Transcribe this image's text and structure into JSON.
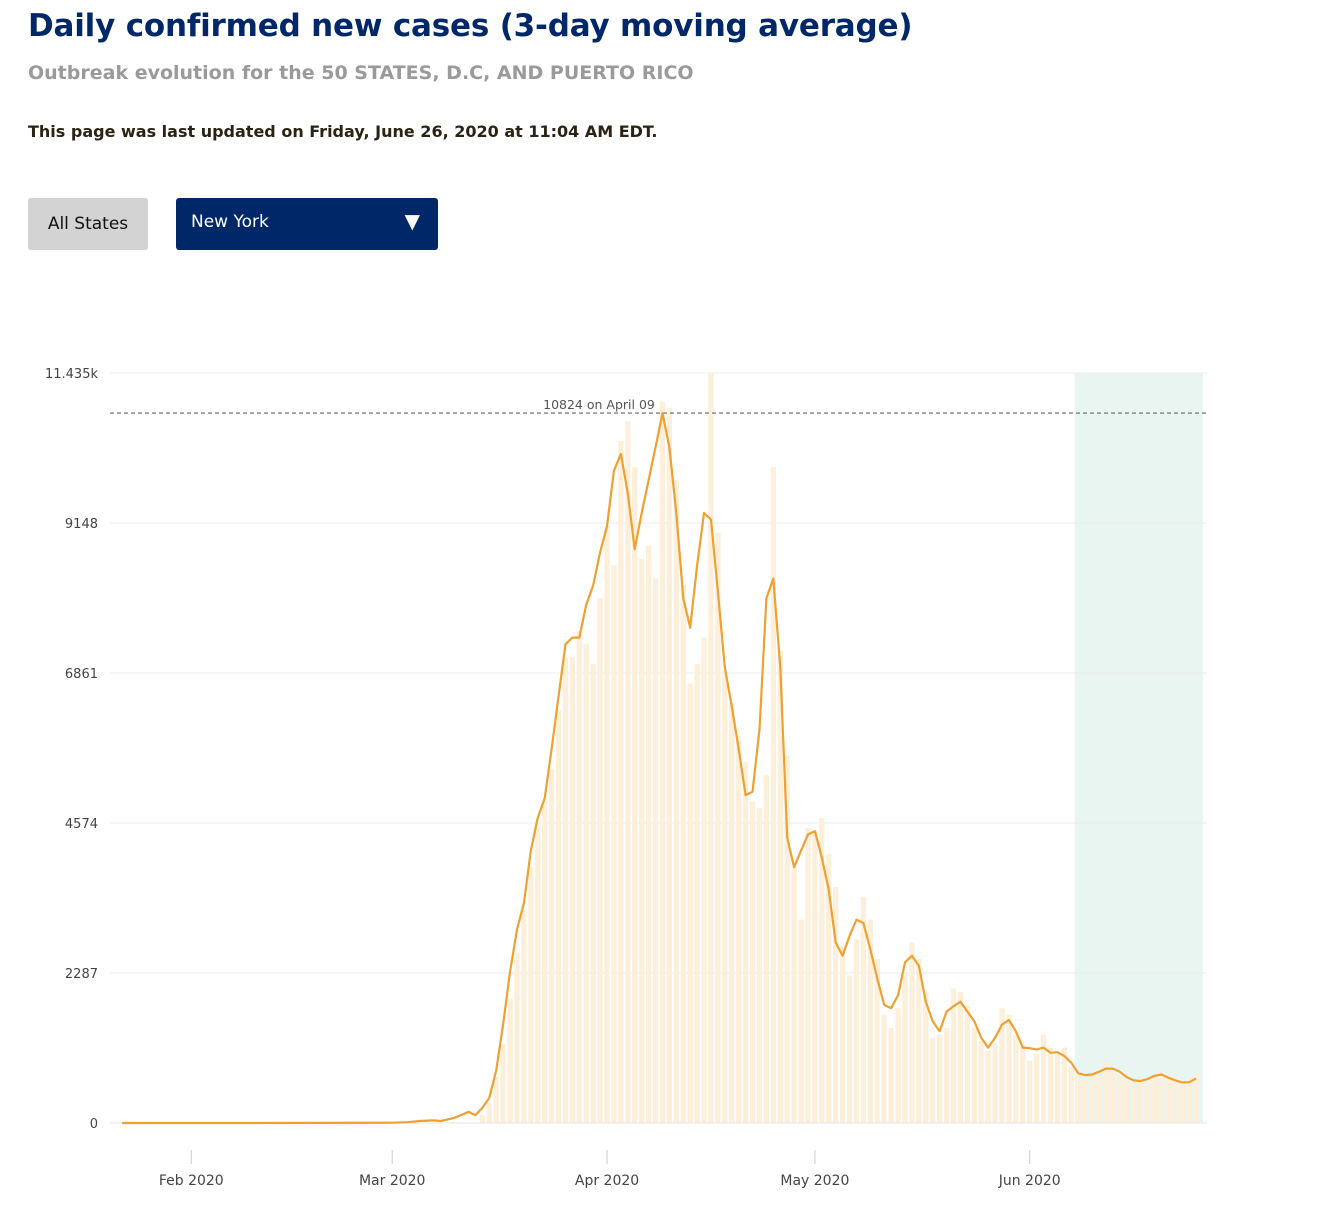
{
  "header": {
    "title": "Daily confirmed new cases (3-day moving average)",
    "subtitle": "Outbreak evolution for the 50 STATES, D.C, AND PUERTO RICO",
    "updated": "This page was last updated on Friday, June 26, 2020 at 11:04 AM EDT."
  },
  "controls": {
    "all_states_label": "All States",
    "state_selected": "New York",
    "caret_icon": "triangle-down-icon"
  },
  "colors": {
    "title": "#002868",
    "line": "#f0a030",
    "bars": "#fdefd9",
    "highlight": "#e9f5f1"
  },
  "chart_data": {
    "type": "line",
    "ylim": [
      0,
      11435
    ],
    "y_ticks": [
      {
        "value": 0,
        "label": "0"
      },
      {
        "value": 2287,
        "label": "2287"
      },
      {
        "value": 4574,
        "label": "4574"
      },
      {
        "value": 6861,
        "label": "6861"
      },
      {
        "value": 9148,
        "label": "9148"
      },
      {
        "value": 11435,
        "label": "11.435k"
      }
    ],
    "x_range": [
      "2020-01-22",
      "2020-06-25"
    ],
    "x_ticks": [
      {
        "date": "2020-02-01",
        "label": "Feb 2020"
      },
      {
        "date": "2020-03-01",
        "label": "Mar 2020"
      },
      {
        "date": "2020-04-01",
        "label": "Apr 2020"
      },
      {
        "date": "2020-05-01",
        "label": "May 2020"
      },
      {
        "date": "2020-06-01",
        "label": "Jun 2020"
      }
    ],
    "peak_annotation": {
      "value": 10824,
      "label": "10824 on April 09"
    },
    "highlight_range": [
      "2020-06-08",
      "2020-06-25"
    ],
    "series": [
      {
        "kind": "line",
        "points": [
          [
            "2020-01-22",
            0
          ],
          [
            "2020-02-10",
            0
          ],
          [
            "2020-03-01",
            5
          ],
          [
            "2020-03-03",
            10
          ],
          [
            "2020-03-05",
            30
          ],
          [
            "2020-03-07",
            40
          ],
          [
            "2020-03-08",
            30
          ],
          [
            "2020-03-10",
            80
          ],
          [
            "2020-03-12",
            170
          ],
          [
            "2020-03-13",
            120
          ],
          [
            "2020-03-14",
            230
          ],
          [
            "2020-03-15",
            380
          ],
          [
            "2020-03-16",
            800
          ],
          [
            "2020-03-17",
            1500
          ],
          [
            "2020-03-18",
            2300
          ],
          [
            "2020-03-19",
            2950
          ],
          [
            "2020-03-20",
            3350
          ],
          [
            "2020-03-21",
            4150
          ],
          [
            "2020-03-22",
            4650
          ],
          [
            "2020-03-23",
            4950
          ],
          [
            "2020-03-24",
            5700
          ],
          [
            "2020-03-25",
            6500
          ],
          [
            "2020-03-26",
            7300
          ],
          [
            "2020-03-27",
            7400
          ],
          [
            "2020-03-28",
            7400
          ],
          [
            "2020-03-29",
            7900
          ],
          [
            "2020-03-30",
            8200
          ],
          [
            "2020-03-31",
            8700
          ],
          [
            "2020-04-01",
            9100
          ],
          [
            "2020-04-02",
            9950
          ],
          [
            "2020-04-03",
            10200
          ],
          [
            "2020-04-04",
            9600
          ],
          [
            "2020-04-05",
            8750
          ],
          [
            "2020-04-06",
            9300
          ],
          [
            "2020-04-07",
            9800
          ],
          [
            "2020-04-08",
            10300
          ],
          [
            "2020-04-09",
            10824
          ],
          [
            "2020-04-10",
            10300
          ],
          [
            "2020-04-11",
            9300
          ],
          [
            "2020-04-12",
            8000
          ],
          [
            "2020-04-13",
            7550
          ],
          [
            "2020-04-14",
            8500
          ],
          [
            "2020-04-15",
            9300
          ],
          [
            "2020-04-16",
            9200
          ],
          [
            "2020-04-17",
            8100
          ],
          [
            "2020-04-18",
            6950
          ],
          [
            "2020-04-19",
            6350
          ],
          [
            "2020-04-20",
            5700
          ],
          [
            "2020-04-21",
            5000
          ],
          [
            "2020-04-22",
            5050
          ],
          [
            "2020-04-23",
            6000
          ],
          [
            "2020-04-24",
            8000
          ],
          [
            "2020-04-25",
            8300
          ],
          [
            "2020-04-26",
            6950
          ],
          [
            "2020-04-27",
            4350
          ],
          [
            "2020-04-28",
            3900
          ],
          [
            "2020-04-29",
            4150
          ],
          [
            "2020-04-30",
            4400
          ],
          [
            "2020-05-01",
            4450
          ],
          [
            "2020-05-02",
            4050
          ],
          [
            "2020-05-03",
            3550
          ],
          [
            "2020-05-04",
            2750
          ],
          [
            "2020-05-05",
            2550
          ],
          [
            "2020-05-06",
            2850
          ],
          [
            "2020-05-07",
            3100
          ],
          [
            "2020-05-08",
            3050
          ],
          [
            "2020-05-09",
            2650
          ],
          [
            "2020-05-10",
            2200
          ],
          [
            "2020-05-11",
            1800
          ],
          [
            "2020-05-12",
            1750
          ],
          [
            "2020-05-13",
            1950
          ],
          [
            "2020-05-14",
            2450
          ],
          [
            "2020-05-15",
            2550
          ],
          [
            "2020-05-16",
            2400
          ],
          [
            "2020-05-17",
            1850
          ],
          [
            "2020-05-18",
            1550
          ],
          [
            "2020-05-19",
            1400
          ],
          [
            "2020-05-20",
            1700
          ],
          [
            "2020-05-21",
            1780
          ],
          [
            "2020-05-22",
            1850
          ],
          [
            "2020-05-23",
            1700
          ],
          [
            "2020-05-24",
            1550
          ],
          [
            "2020-05-25",
            1300
          ],
          [
            "2020-05-26",
            1150
          ],
          [
            "2020-05-27",
            1300
          ],
          [
            "2020-05-28",
            1500
          ],
          [
            "2020-05-29",
            1570
          ],
          [
            "2020-05-30",
            1400
          ],
          [
            "2020-05-31",
            1150
          ],
          [
            "2020-06-01",
            1140
          ],
          [
            "2020-06-02",
            1120
          ],
          [
            "2020-06-03",
            1150
          ],
          [
            "2020-06-04",
            1070
          ],
          [
            "2020-06-05",
            1080
          ],
          [
            "2020-06-06",
            1020
          ],
          [
            "2020-06-07",
            920
          ],
          [
            "2020-06-08",
            760
          ],
          [
            "2020-06-09",
            730
          ],
          [
            "2020-06-10",
            740
          ],
          [
            "2020-06-11",
            780
          ],
          [
            "2020-06-12",
            830
          ],
          [
            "2020-06-13",
            830
          ],
          [
            "2020-06-14",
            780
          ],
          [
            "2020-06-15",
            700
          ],
          [
            "2020-06-16",
            650
          ],
          [
            "2020-06-17",
            640
          ],
          [
            "2020-06-18",
            670
          ],
          [
            "2020-06-19",
            720
          ],
          [
            "2020-06-20",
            740
          ],
          [
            "2020-06-21",
            690
          ],
          [
            "2020-06-22",
            650
          ],
          [
            "2020-06-23",
            620
          ],
          [
            "2020-06-24",
            620
          ],
          [
            "2020-06-25",
            680
          ]
        ]
      },
      {
        "kind": "bar",
        "points": [
          [
            "2020-03-14",
            120
          ],
          [
            "2020-03-15",
            300
          ],
          [
            "2020-03-16",
            700
          ],
          [
            "2020-03-17",
            1200
          ],
          [
            "2020-03-18",
            1900
          ],
          [
            "2020-03-19",
            2600
          ],
          [
            "2020-03-20",
            3250
          ],
          [
            "2020-03-21",
            3900
          ],
          [
            "2020-03-22",
            4500
          ],
          [
            "2020-03-23",
            4900
          ],
          [
            "2020-03-24",
            5400
          ],
          [
            "2020-03-25",
            6300
          ],
          [
            "2020-03-26",
            7100
          ],
          [
            "2020-03-27",
            7100
          ],
          [
            "2020-03-28",
            7500
          ],
          [
            "2020-03-29",
            7300
          ],
          [
            "2020-03-30",
            7000
          ],
          [
            "2020-03-31",
            8000
          ],
          [
            "2020-04-01",
            9100
          ],
          [
            "2020-04-02",
            8500
          ],
          [
            "2020-04-03",
            10400
          ],
          [
            "2020-04-04",
            10700
          ],
          [
            "2020-04-05",
            10000
          ],
          [
            "2020-04-06",
            8600
          ],
          [
            "2020-04-07",
            8800
          ],
          [
            "2020-04-08",
            8300
          ],
          [
            "2020-04-09",
            11000
          ],
          [
            "2020-04-10",
            10900
          ],
          [
            "2020-04-11",
            9800
          ],
          [
            "2020-04-12",
            8200
          ],
          [
            "2020-04-13",
            6700
          ],
          [
            "2020-04-14",
            7000
          ],
          [
            "2020-04-15",
            7400
          ],
          [
            "2020-04-16",
            11435
          ],
          [
            "2020-04-17",
            9000
          ],
          [
            "2020-04-18",
            6900
          ],
          [
            "2020-04-19",
            6400
          ],
          [
            "2020-04-20",
            5900
          ],
          [
            "2020-04-21",
            5500
          ],
          [
            "2020-04-22",
            4900
          ],
          [
            "2020-04-23",
            4800
          ],
          [
            "2020-04-24",
            5300
          ],
          [
            "2020-04-25",
            10000
          ],
          [
            "2020-04-26",
            7200
          ],
          [
            "2020-04-27",
            5600
          ],
          [
            "2020-04-28",
            3900
          ],
          [
            "2020-04-29",
            3100
          ],
          [
            "2020-04-30",
            4500
          ],
          [
            "2020-05-01",
            4450
          ],
          [
            "2020-05-02",
            4650
          ],
          [
            "2020-05-03",
            4100
          ],
          [
            "2020-05-04",
            3600
          ],
          [
            "2020-05-05",
            2700
          ],
          [
            "2020-05-06",
            2250
          ],
          [
            "2020-05-07",
            2800
          ],
          [
            "2020-05-08",
            3450
          ],
          [
            "2020-05-09",
            3100
          ],
          [
            "2020-05-10",
            2500
          ],
          [
            "2020-05-11",
            1650
          ],
          [
            "2020-05-12",
            1450
          ],
          [
            "2020-05-13",
            1750
          ],
          [
            "2020-05-14",
            2300
          ],
          [
            "2020-05-15",
            2750
          ],
          [
            "2020-05-16",
            2500
          ],
          [
            "2020-05-17",
            2000
          ],
          [
            "2020-05-18",
            1300
          ],
          [
            "2020-05-19",
            1350
          ],
          [
            "2020-05-20",
            1450
          ],
          [
            "2020-05-21",
            2050
          ],
          [
            "2020-05-22",
            2000
          ],
          [
            "2020-05-23",
            1800
          ],
          [
            "2020-05-24",
            1450
          ],
          [
            "2020-05-25",
            1250
          ],
          [
            "2020-05-26",
            1100
          ],
          [
            "2020-05-27",
            1200
          ],
          [
            "2020-05-28",
            1750
          ],
          [
            "2020-05-29",
            1650
          ],
          [
            "2020-05-30",
            1350
          ],
          [
            "2020-05-31",
            1200
          ],
          [
            "2020-06-01",
            950
          ],
          [
            "2020-06-02",
            1050
          ],
          [
            "2020-06-03",
            1350
          ],
          [
            "2020-06-04",
            1150
          ],
          [
            "2020-06-05",
            1050
          ],
          [
            "2020-06-06",
            1150
          ],
          [
            "2020-06-07",
            850
          ],
          [
            "2020-06-08",
            800
          ],
          [
            "2020-06-09",
            650
          ],
          [
            "2020-06-10",
            750
          ],
          [
            "2020-06-11",
            780
          ],
          [
            "2020-06-12",
            920
          ],
          [
            "2020-06-13",
            780
          ],
          [
            "2020-06-14",
            700
          ],
          [
            "2020-06-15",
            650
          ],
          [
            "2020-06-16",
            600
          ],
          [
            "2020-06-17",
            650
          ],
          [
            "2020-06-18",
            640
          ],
          [
            "2020-06-19",
            700
          ],
          [
            "2020-06-20",
            780
          ],
          [
            "2020-06-21",
            750
          ],
          [
            "2020-06-22",
            620
          ],
          [
            "2020-06-23",
            600
          ],
          [
            "2020-06-24",
            650
          ],
          [
            "2020-06-25",
            750
          ]
        ]
      }
    ]
  }
}
